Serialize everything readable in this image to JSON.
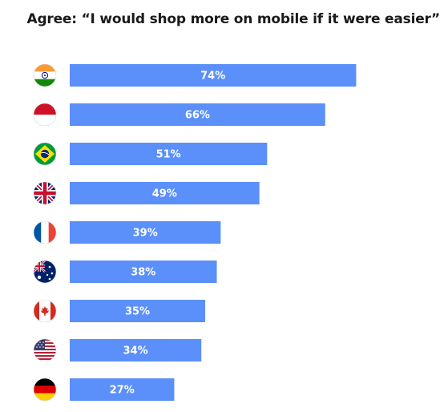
{
  "chart_data": {
    "type": "bar",
    "orientation": "horizontal",
    "title": "Agree: “I would shop more on mobile if it were easier”",
    "categories": [
      "India",
      "Indonesia",
      "Brazil",
      "United Kingdom",
      "France",
      "Australia",
      "Canada",
      "United States",
      "Germany"
    ],
    "category_icons": [
      "india-flag-icon",
      "indonesia-flag-icon",
      "brazil-flag-icon",
      "uk-flag-icon",
      "france-flag-icon",
      "australia-flag-icon",
      "canada-flag-icon",
      "usa-flag-icon",
      "germany-flag-icon"
    ],
    "values": [
      74,
      66,
      51,
      49,
      39,
      38,
      35,
      34,
      27
    ],
    "value_labels": [
      "74%",
      "66%",
      "51%",
      "49%",
      "39%",
      "38%",
      "35%",
      "34%",
      "27%"
    ],
    "bar_color": "#5b8ff9",
    "label_color": "#ffffff",
    "xlim": [
      0,
      100
    ],
    "grid": false,
    "legend": "none"
  }
}
